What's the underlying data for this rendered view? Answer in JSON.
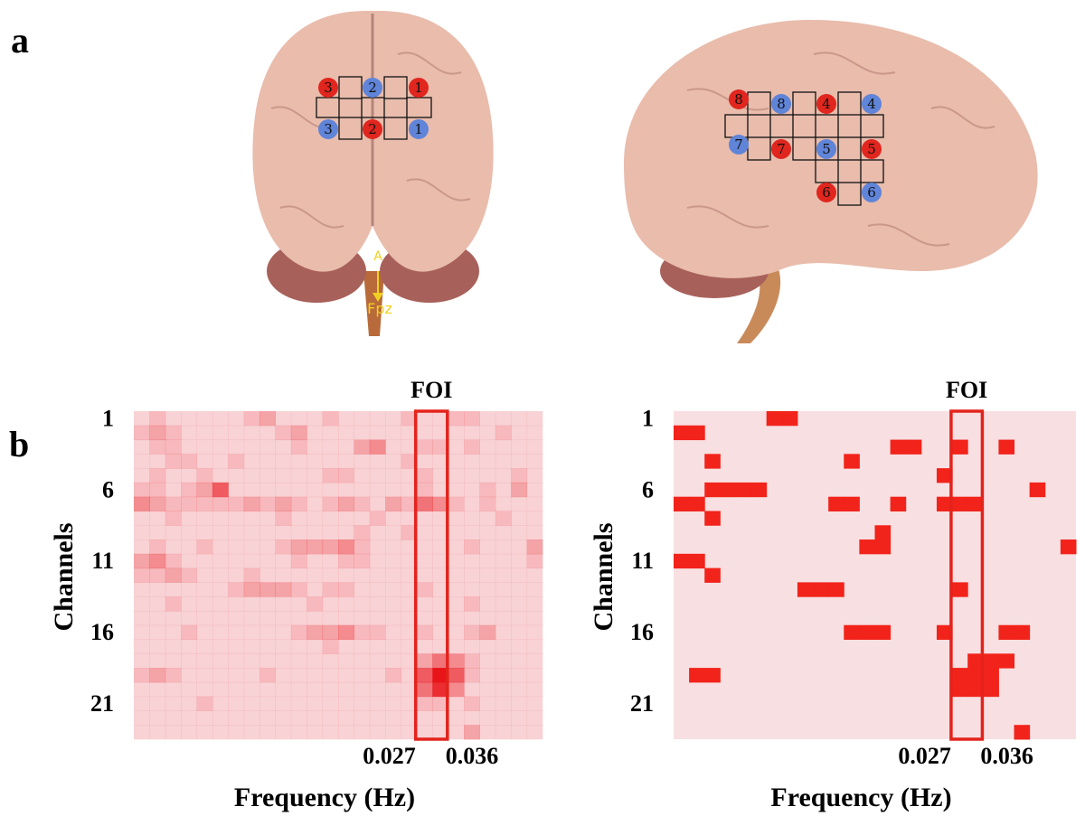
{
  "panel_labels": [
    "a",
    "b"
  ],
  "brain": {
    "front": {
      "electrodes": [
        "3",
        "2",
        "1",
        "3",
        "2",
        "1"
      ],
      "landmarks": [
        "A",
        "Fpz"
      ]
    },
    "side": {
      "electrodes": [
        "8",
        "8",
        "4",
        "4",
        "7",
        "7",
        "5",
        "5",
        "6",
        "6"
      ]
    }
  },
  "chart_data": [
    {
      "type": "heatmap",
      "annotation": "FOI",
      "xlabel": "Frequency (Hz)",
      "ylabel": "Channels",
      "xlim": [
        -0.053,
        0.063
      ],
      "ylim": [
        23.5,
        0.5
      ],
      "yticks": [
        1,
        6,
        11,
        16,
        21
      ],
      "xticks": [
        0.027,
        0.036
      ],
      "color": "#e8141a",
      "background": "#fbeaec",
      "values": [
        [
          1,
          2,
          1,
          1,
          1,
          1,
          1,
          2,
          3,
          1,
          1,
          1,
          2,
          1,
          1,
          1,
          1,
          2,
          1,
          1,
          2,
          2,
          1,
          1,
          1,
          1
        ],
        [
          2,
          3,
          2,
          1,
          1,
          1,
          1,
          1,
          1,
          2,
          3,
          1,
          1,
          1,
          1,
          1,
          1,
          1,
          1,
          1,
          1,
          1,
          1,
          2,
          1,
          1
        ],
        [
          1,
          2,
          2,
          1,
          1,
          1,
          1,
          1,
          1,
          1,
          2,
          1,
          1,
          1,
          3,
          4,
          1,
          1,
          2,
          2,
          1,
          2,
          1,
          1,
          1,
          1
        ],
        [
          1,
          1,
          2,
          2,
          1,
          1,
          2,
          1,
          1,
          1,
          1,
          1,
          1,
          1,
          1,
          1,
          1,
          2,
          1,
          1,
          1,
          1,
          1,
          1,
          1,
          1
        ],
        [
          1,
          2,
          1,
          1,
          2,
          1,
          1,
          1,
          1,
          1,
          1,
          1,
          2,
          2,
          1,
          1,
          1,
          1,
          2,
          1,
          1,
          1,
          1,
          1,
          2,
          1
        ],
        [
          2,
          2,
          1,
          2,
          3,
          6,
          1,
          1,
          1,
          1,
          1,
          1,
          1,
          1,
          1,
          1,
          1,
          1,
          2,
          1,
          1,
          1,
          2,
          1,
          3,
          1
        ],
        [
          4,
          3,
          2,
          2,
          2,
          2,
          2,
          3,
          2,
          3,
          2,
          1,
          2,
          3,
          2,
          1,
          3,
          2,
          5,
          4,
          2,
          1,
          2,
          1,
          1,
          1
        ],
        [
          1,
          1,
          2,
          1,
          1,
          1,
          1,
          1,
          1,
          2,
          1,
          1,
          1,
          1,
          1,
          2,
          1,
          1,
          1,
          1,
          1,
          1,
          1,
          2,
          1,
          1
        ],
        [
          1,
          1,
          1,
          1,
          1,
          1,
          1,
          1,
          1,
          1,
          1,
          1,
          1,
          1,
          2,
          1,
          1,
          2,
          1,
          1,
          1,
          1,
          1,
          1,
          1,
          1
        ],
        [
          1,
          2,
          1,
          1,
          2,
          1,
          1,
          1,
          1,
          2,
          3,
          3,
          3,
          4,
          2,
          1,
          1,
          1,
          1,
          1,
          1,
          2,
          1,
          1,
          1,
          3
        ],
        [
          3,
          4,
          2,
          1,
          1,
          1,
          1,
          1,
          1,
          1,
          2,
          1,
          1,
          2,
          2,
          1,
          1,
          1,
          1,
          1,
          1,
          1,
          1,
          1,
          1,
          2
        ],
        [
          2,
          2,
          3,
          2,
          1,
          1,
          1,
          2,
          1,
          1,
          1,
          1,
          1,
          1,
          1,
          1,
          1,
          1,
          1,
          1,
          1,
          1,
          1,
          1,
          1,
          1
        ],
        [
          1,
          1,
          1,
          1,
          1,
          1,
          2,
          3,
          3,
          3,
          2,
          1,
          2,
          2,
          1,
          1,
          1,
          1,
          2,
          1,
          1,
          1,
          1,
          1,
          1,
          1
        ],
        [
          1,
          1,
          2,
          1,
          1,
          1,
          1,
          1,
          1,
          1,
          1,
          2,
          1,
          1,
          1,
          1,
          1,
          1,
          1,
          1,
          1,
          2,
          1,
          1,
          1,
          1
        ],
        [
          1,
          1,
          1,
          1,
          1,
          1,
          1,
          1,
          1,
          1,
          1,
          1,
          1,
          1,
          1,
          1,
          1,
          1,
          1,
          1,
          1,
          1,
          1,
          1,
          1,
          1
        ],
        [
          1,
          1,
          1,
          2,
          1,
          1,
          1,
          1,
          1,
          1,
          2,
          3,
          3,
          4,
          2,
          2,
          1,
          1,
          2,
          1,
          1,
          2,
          3,
          1,
          1,
          1
        ],
        [
          1,
          1,
          1,
          1,
          1,
          1,
          1,
          1,
          1,
          1,
          1,
          1,
          2,
          1,
          1,
          1,
          1,
          1,
          1,
          1,
          1,
          1,
          1,
          1,
          1,
          1
        ],
        [
          1,
          1,
          1,
          1,
          1,
          1,
          1,
          1,
          1,
          1,
          1,
          1,
          1,
          1,
          1,
          1,
          1,
          1,
          3,
          5,
          4,
          2,
          1,
          1,
          1,
          1
        ],
        [
          2,
          3,
          2,
          1,
          1,
          1,
          1,
          1,
          2,
          1,
          1,
          1,
          1,
          1,
          1,
          1,
          2,
          1,
          6,
          9,
          6,
          2,
          1,
          1,
          1,
          1
        ],
        [
          1,
          1,
          1,
          1,
          1,
          1,
          1,
          1,
          1,
          1,
          1,
          1,
          1,
          1,
          1,
          1,
          1,
          1,
          5,
          8,
          4,
          1,
          1,
          1,
          1,
          1
        ],
        [
          1,
          1,
          1,
          1,
          2,
          1,
          1,
          1,
          1,
          1,
          1,
          1,
          1,
          1,
          1,
          1,
          1,
          1,
          2,
          2,
          1,
          2,
          1,
          1,
          1,
          1
        ],
        [
          1,
          1,
          1,
          1,
          1,
          1,
          1,
          1,
          1,
          1,
          1,
          1,
          1,
          1,
          1,
          1,
          1,
          1,
          1,
          1,
          1,
          1,
          1,
          1,
          1,
          1
        ],
        [
          1,
          1,
          1,
          1,
          1,
          1,
          1,
          1,
          1,
          1,
          1,
          1,
          1,
          1,
          1,
          1,
          1,
          1,
          1,
          1,
          1,
          3,
          1,
          1,
          1,
          1
        ]
      ]
    },
    {
      "type": "heatmap",
      "annotation": "FOI",
      "xlabel": "Frequency (Hz)",
      "ylabel": "Channels",
      "xlim": [
        -0.053,
        0.063
      ],
      "ylim": [
        23.5,
        0.5
      ],
      "yticks": [
        1,
        6,
        11,
        16,
        21
      ],
      "xticks": [
        0.027,
        0.036
      ],
      "color": "#f2231a",
      "background": "#f8dfe2",
      "values": [
        [
          0,
          0,
          0,
          0,
          0,
          0,
          1,
          1,
          0,
          0,
          0,
          0,
          0,
          0,
          0,
          0,
          0,
          0,
          0,
          0,
          0,
          0,
          0,
          0,
          0,
          0
        ],
        [
          1,
          1,
          0,
          0,
          0,
          0,
          0,
          0,
          0,
          0,
          0,
          0,
          0,
          0,
          0,
          0,
          0,
          0,
          0,
          0,
          0,
          0,
          0,
          0,
          0,
          0
        ],
        [
          0,
          0,
          0,
          0,
          0,
          0,
          0,
          0,
          0,
          0,
          0,
          0,
          0,
          0,
          1,
          1,
          0,
          0,
          1,
          0,
          0,
          1,
          0,
          0,
          0,
          0
        ],
        [
          0,
          0,
          1,
          0,
          0,
          0,
          0,
          0,
          0,
          0,
          0,
          1,
          0,
          0,
          0,
          0,
          0,
          0,
          0,
          0,
          0,
          0,
          0,
          0,
          0,
          0
        ],
        [
          0,
          0,
          0,
          0,
          0,
          0,
          0,
          0,
          0,
          0,
          0,
          0,
          0,
          0,
          0,
          0,
          0,
          1,
          0,
          0,
          0,
          0,
          0,
          0,
          0,
          0
        ],
        [
          0,
          0,
          1,
          1,
          1,
          1,
          0,
          0,
          0,
          0,
          0,
          0,
          0,
          0,
          0,
          0,
          0,
          0,
          0,
          0,
          0,
          0,
          0,
          1,
          0,
          0
        ],
        [
          1,
          1,
          0,
          0,
          0,
          0,
          0,
          0,
          0,
          0,
          1,
          1,
          0,
          0,
          1,
          0,
          0,
          1,
          1,
          1,
          0,
          0,
          0,
          0,
          0,
          0
        ],
        [
          0,
          0,
          1,
          0,
          0,
          0,
          0,
          0,
          0,
          0,
          0,
          0,
          0,
          0,
          0,
          0,
          0,
          0,
          0,
          0,
          0,
          0,
          0,
          0,
          0,
          0
        ],
        [
          0,
          0,
          0,
          0,
          0,
          0,
          0,
          0,
          0,
          0,
          0,
          0,
          0,
          1,
          0,
          0,
          0,
          0,
          0,
          0,
          0,
          0,
          0,
          0,
          0,
          0
        ],
        [
          0,
          0,
          0,
          0,
          0,
          0,
          0,
          0,
          0,
          0,
          0,
          0,
          1,
          1,
          0,
          0,
          0,
          0,
          0,
          0,
          0,
          0,
          0,
          0,
          0,
          1
        ],
        [
          1,
          1,
          0,
          0,
          0,
          0,
          0,
          0,
          0,
          0,
          0,
          0,
          0,
          0,
          0,
          0,
          0,
          0,
          0,
          0,
          0,
          0,
          0,
          0,
          0,
          0
        ],
        [
          0,
          0,
          1,
          0,
          0,
          0,
          0,
          0,
          0,
          0,
          0,
          0,
          0,
          0,
          0,
          0,
          0,
          0,
          0,
          0,
          0,
          0,
          0,
          0,
          0,
          0
        ],
        [
          0,
          0,
          0,
          0,
          0,
          0,
          0,
          0,
          1,
          1,
          1,
          0,
          0,
          0,
          0,
          0,
          0,
          0,
          1,
          0,
          0,
          0,
          0,
          0,
          0,
          0
        ],
        [
          0,
          0,
          0,
          0,
          0,
          0,
          0,
          0,
          0,
          0,
          0,
          0,
          0,
          0,
          0,
          0,
          0,
          0,
          0,
          0,
          0,
          0,
          0,
          0,
          0,
          0
        ],
        [
          0,
          0,
          0,
          0,
          0,
          0,
          0,
          0,
          0,
          0,
          0,
          0,
          0,
          0,
          0,
          0,
          0,
          0,
          0,
          0,
          0,
          0,
          0,
          0,
          0,
          0
        ],
        [
          0,
          0,
          0,
          0,
          0,
          0,
          0,
          0,
          0,
          0,
          0,
          1,
          1,
          1,
          0,
          0,
          0,
          1,
          0,
          0,
          0,
          1,
          1,
          0,
          0,
          0
        ],
        [
          0,
          0,
          0,
          0,
          0,
          0,
          0,
          0,
          0,
          0,
          0,
          0,
          0,
          0,
          0,
          0,
          0,
          0,
          0,
          0,
          0,
          0,
          0,
          0,
          0,
          0
        ],
        [
          0,
          0,
          0,
          0,
          0,
          0,
          0,
          0,
          0,
          0,
          0,
          0,
          0,
          0,
          0,
          0,
          0,
          0,
          0,
          1,
          1,
          1,
          0,
          0,
          0,
          0
        ],
        [
          0,
          1,
          1,
          0,
          0,
          0,
          0,
          0,
          0,
          0,
          0,
          0,
          0,
          0,
          0,
          0,
          0,
          0,
          1,
          1,
          1,
          0,
          0,
          0,
          0,
          0
        ],
        [
          0,
          0,
          0,
          0,
          0,
          0,
          0,
          0,
          0,
          0,
          0,
          0,
          0,
          0,
          0,
          0,
          0,
          0,
          1,
          1,
          1,
          0,
          0,
          0,
          0,
          0
        ],
        [
          0,
          0,
          0,
          0,
          0,
          0,
          0,
          0,
          0,
          0,
          0,
          0,
          0,
          0,
          0,
          0,
          0,
          0,
          0,
          0,
          0,
          0,
          0,
          0,
          0,
          0
        ],
        [
          0,
          0,
          0,
          0,
          0,
          0,
          0,
          0,
          0,
          0,
          0,
          0,
          0,
          0,
          0,
          0,
          0,
          0,
          0,
          0,
          0,
          0,
          0,
          0,
          0,
          0
        ],
        [
          0,
          0,
          0,
          0,
          0,
          0,
          0,
          0,
          0,
          0,
          0,
          0,
          0,
          0,
          0,
          0,
          0,
          0,
          0,
          0,
          0,
          0,
          1,
          0,
          0,
          0
        ]
      ]
    }
  ]
}
